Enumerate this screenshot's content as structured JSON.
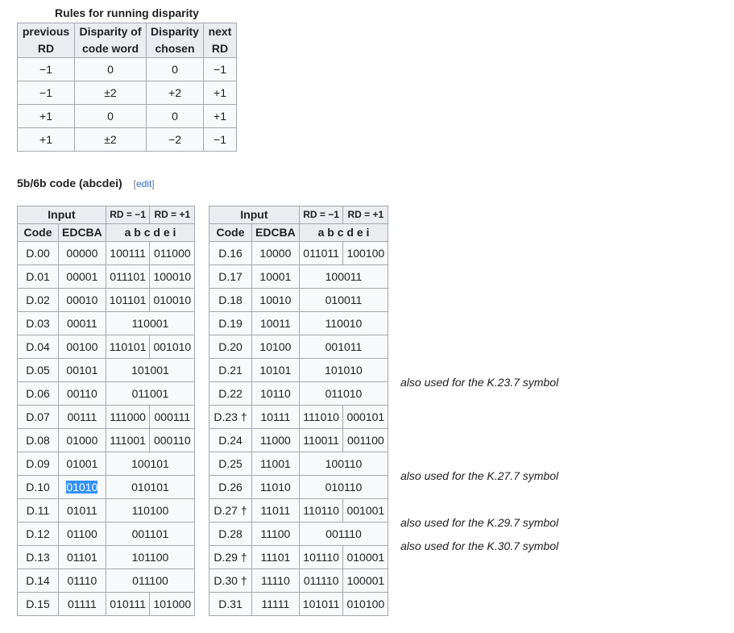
{
  "rd_table": {
    "caption": "Rules for running disparity",
    "headers": [
      "previous RD",
      "Disparity of code word",
      "Disparity chosen",
      "next RD"
    ],
    "rows": [
      [
        "−1",
        "0",
        "0",
        "−1"
      ],
      [
        "−1",
        "±2",
        "+2",
        "+1"
      ],
      [
        "+1",
        "0",
        "0",
        "+1"
      ],
      [
        "+1",
        "±2",
        "−2",
        "−1"
      ]
    ]
  },
  "section": {
    "title": "5b/6b code (abcdei)",
    "edit_open": "[",
    "edit_label": "edit",
    "edit_close": "]"
  },
  "code_table_headers": {
    "input": "Input",
    "rd_minus": "RD = −1",
    "rd_plus": "RD = +1",
    "code": "Code",
    "edcba": "EDCBA",
    "abcdei": "a b c d e i"
  },
  "code_table_left": [
    {
      "code": "D.00",
      "edcba": "00000",
      "rdm": "100111",
      "rdp": "011000"
    },
    {
      "code": "D.01",
      "edcba": "00001",
      "rdm": "011101",
      "rdp": "100010"
    },
    {
      "code": "D.02",
      "edcba": "00010",
      "rdm": "101101",
      "rdp": "010010"
    },
    {
      "code": "D.03",
      "edcba": "00011",
      "both": "110001"
    },
    {
      "code": "D.04",
      "edcba": "00100",
      "rdm": "110101",
      "rdp": "001010"
    },
    {
      "code": "D.05",
      "edcba": "00101",
      "both": "101001"
    },
    {
      "code": "D.06",
      "edcba": "00110",
      "both": "011001"
    },
    {
      "code": "D.07",
      "edcba": "00111",
      "rdm": "111000",
      "rdp": "000111"
    },
    {
      "code": "D.08",
      "edcba": "01000",
      "rdm": "111001",
      "rdp": "000110"
    },
    {
      "code": "D.09",
      "edcba": "01001",
      "both": "100101"
    },
    {
      "code": "D.10",
      "edcba": "01010",
      "both": "010101",
      "selected": true
    },
    {
      "code": "D.11",
      "edcba": "01011",
      "both": "110100"
    },
    {
      "code": "D.12",
      "edcba": "01100",
      "both": "001101"
    },
    {
      "code": "D.13",
      "edcba": "01101",
      "both": "101100"
    },
    {
      "code": "D.14",
      "edcba": "01110",
      "both": "011100"
    },
    {
      "code": "D.15",
      "edcba": "01111",
      "rdm": "010111",
      "rdp": "101000"
    }
  ],
  "code_table_right": [
    {
      "code": "D.16",
      "edcba": "10000",
      "rdm": "011011",
      "rdp": "100100"
    },
    {
      "code": "D.17",
      "edcba": "10001",
      "both": "100011"
    },
    {
      "code": "D.18",
      "edcba": "10010",
      "both": "010011"
    },
    {
      "code": "D.19",
      "edcba": "10011",
      "both": "110010"
    },
    {
      "code": "D.20",
      "edcba": "10100",
      "both": "001011"
    },
    {
      "code": "D.21",
      "edcba": "10101",
      "both": "101010"
    },
    {
      "code": "D.22",
      "edcba": "10110",
      "both": "011010"
    },
    {
      "code": "D.23 †",
      "edcba": "10111",
      "rdm": "111010",
      "rdp": "000101",
      "note": "also used for the K.23.7 symbol"
    },
    {
      "code": "D.24",
      "edcba": "11000",
      "rdm": "110011",
      "rdp": "001100"
    },
    {
      "code": "D.25",
      "edcba": "11001",
      "both": "100110"
    },
    {
      "code": "D.26",
      "edcba": "11010",
      "both": "010110"
    },
    {
      "code": "D.27 †",
      "edcba": "11011",
      "rdm": "110110",
      "rdp": "001001",
      "note": "also used for the K.27.7 symbol"
    },
    {
      "code": "D.28",
      "edcba": "11100",
      "both": "001110"
    },
    {
      "code": "D.29 †",
      "edcba": "11101",
      "rdm": "101110",
      "rdp": "010001",
      "note": "also used for the K.29.7 symbol"
    },
    {
      "code": "D.30 †",
      "edcba": "11110",
      "rdm": "011110",
      "rdp": "100001",
      "note": "also used for the K.30.7 symbol"
    },
    {
      "code": "D.31",
      "edcba": "11111",
      "rdm": "101011",
      "rdp": "010100"
    }
  ]
}
